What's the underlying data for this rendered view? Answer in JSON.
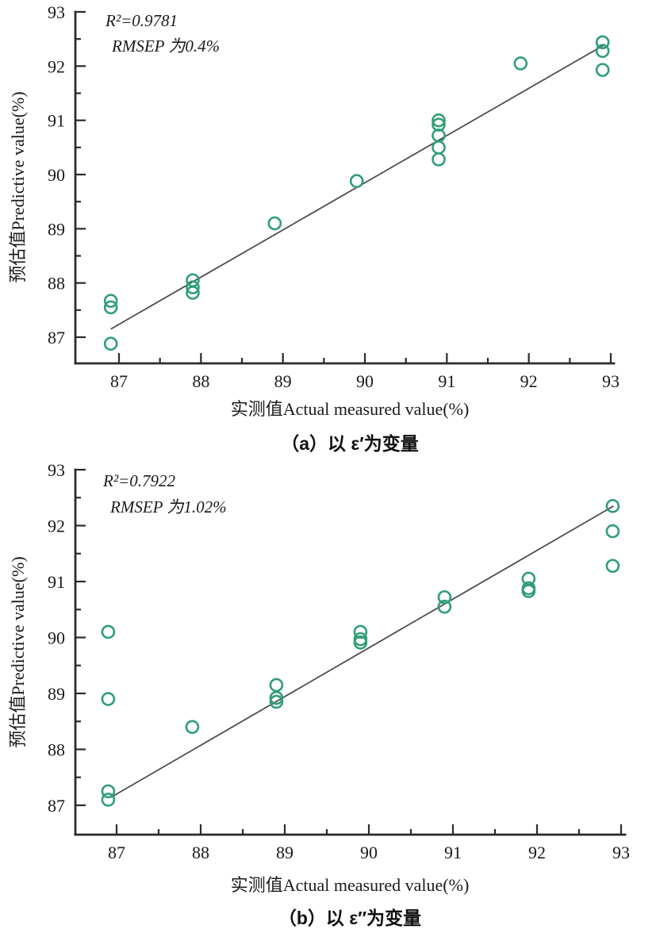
{
  "figure": {
    "background": "#ffffff",
    "marker_color": "#2f9e74",
    "fit_line_color": "#4d4d4d",
    "axis_color": "#2b2b2b",
    "text_color": "#1b1b1b"
  },
  "chart_data": [
    {
      "type": "scatter",
      "title": "（a）以 ε′为变量",
      "xlabel": "实测值Actual measured value(%)",
      "ylabel": "预估值Predictive value(%)",
      "annotations": [
        "R²=0.9781",
        "RMSEP 为0.4%"
      ],
      "xlim": [
        86.45,
        93.05
      ],
      "ylim": [
        86.45,
        93
      ],
      "xticks": [
        87,
        88,
        89,
        90,
        91,
        92,
        93
      ],
      "yticks": [
        87,
        88,
        89,
        90,
        91,
        92,
        93
      ],
      "minor_tick_step": 0.5,
      "grid": false,
      "legend": "none",
      "marker": "open-circle",
      "marker_color": "#2f9e74",
      "fit_line": {
        "x1": 86.9,
        "y1": 87.15,
        "x2": 92.93,
        "y2": 92.4,
        "color": "#4d4d4d"
      },
      "points": [
        [
          86.9,
          87.67
        ],
        [
          86.9,
          87.55
        ],
        [
          86.9,
          86.88
        ],
        [
          87.9,
          88.05
        ],
        [
          87.9,
          87.92
        ],
        [
          87.9,
          87.82
        ],
        [
          88.9,
          89.1
        ],
        [
          89.9,
          89.88
        ],
        [
          90.9,
          91.0
        ],
        [
          90.9,
          90.92
        ],
        [
          90.9,
          90.72
        ],
        [
          90.9,
          90.5
        ],
        [
          90.9,
          90.28
        ],
        [
          91.9,
          92.05
        ],
        [
          92.9,
          92.44
        ],
        [
          92.9,
          92.28
        ],
        [
          92.9,
          91.93
        ]
      ]
    },
    {
      "type": "scatter",
      "title": "（b）以 ε″为变量",
      "xlabel": "实测值Actual measured value(%)",
      "ylabel": "预估值Predictive value(%)",
      "annotations": [
        "R²=0.7922",
        "RMSEP 为1.02%"
      ],
      "xlim": [
        86.45,
        93.05
      ],
      "ylim": [
        86.45,
        93
      ],
      "xticks": [
        87,
        88,
        89,
        90,
        91,
        92,
        93
      ],
      "yticks": [
        87,
        88,
        89,
        90,
        91,
        92,
        93
      ],
      "minor_tick_step": 0.5,
      "grid": false,
      "legend": "none",
      "marker": "open-circle",
      "marker_color": "#2f9e74",
      "fit_line": {
        "x1": 86.93,
        "y1": 87.14,
        "x2": 92.91,
        "y2": 92.35,
        "color": "#4d4d4d"
      },
      "points": [
        [
          86.9,
          90.1
        ],
        [
          86.9,
          88.9
        ],
        [
          86.9,
          87.25
        ],
        [
          86.9,
          87.1
        ],
        [
          87.9,
          88.4
        ],
        [
          88.9,
          89.15
        ],
        [
          88.9,
          88.92
        ],
        [
          88.9,
          88.85
        ],
        [
          89.9,
          90.1
        ],
        [
          89.9,
          89.97
        ],
        [
          89.9,
          89.91
        ],
        [
          90.9,
          90.72
        ],
        [
          90.9,
          90.55
        ],
        [
          91.9,
          91.05
        ],
        [
          91.9,
          90.88
        ],
        [
          91.9,
          90.83
        ],
        [
          92.9,
          92.35
        ],
        [
          92.9,
          91.9
        ],
        [
          92.9,
          91.28
        ]
      ]
    }
  ]
}
